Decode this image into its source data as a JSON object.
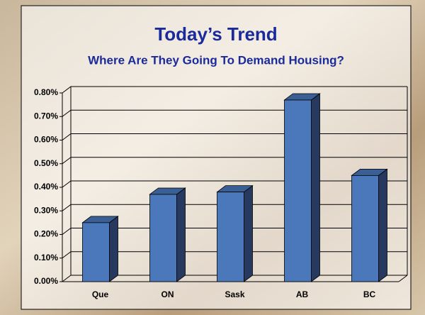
{
  "chart_data": {
    "type": "bar3d",
    "title": "Today’s Trend",
    "subtitle": "Where Are They Going To Demand Housing?",
    "categories": [
      "Que",
      "ON",
      "Sask",
      "AB",
      "BC"
    ],
    "values": [
      0.25,
      0.37,
      0.38,
      0.77,
      0.45
    ],
    "color": "#4a78ba",
    "ylim": [
      0,
      0.8
    ],
    "yticks": [
      {
        "value": 0,
        "label": "0.00%"
      },
      {
        "value": 0.1,
        "label": "0.10%"
      },
      {
        "value": 0.2,
        "label": "0.20%"
      },
      {
        "value": 0.3,
        "label": "0.30%"
      },
      {
        "value": 0.4,
        "label": "0.40%"
      },
      {
        "value": 0.5,
        "label": "0.50%"
      },
      {
        "value": 0.6,
        "label": "0.60%"
      },
      {
        "value": 0.7,
        "label": "0.70%"
      },
      {
        "value": 0.8,
        "label": "0.80%"
      }
    ],
    "grid": true
  }
}
